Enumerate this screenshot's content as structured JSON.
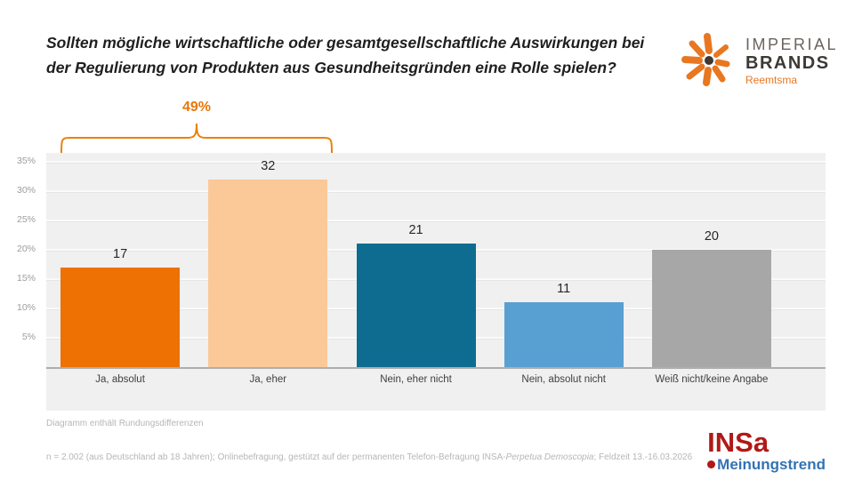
{
  "title": "Sollten mögliche wirtschaftliche oder gesamtgesellschaftliche Auswirkungen bei der Regulierung von Produkten aus Gesundheitsgründen eine Rolle spielen?",
  "logo_imperial": {
    "line1": "IMPERIAL",
    "line2": "BRANDS",
    "line3": "Reemtsma",
    "accent_color": "#e87722"
  },
  "bracket": {
    "label": "49%",
    "color": "#e8820c",
    "spans_categories": [
      "Ja, absolut",
      "Ja, eher"
    ]
  },
  "chart_data": {
    "type": "bar",
    "title": "",
    "categories": [
      "Ja, absolut",
      "Ja, eher",
      "Nein, eher nicht",
      "Nein, absolut nicht",
      "Weiß nicht/keine Angabe"
    ],
    "values": [
      17,
      32,
      21,
      11,
      20
    ],
    "bar_colors": [
      "#ed7103",
      "#fbc998",
      "#0e6c90",
      "#58a0d2",
      "#a7a7a7"
    ],
    "ytick_values": [
      5,
      10,
      15,
      20,
      25,
      30,
      35
    ],
    "ytick_labels": [
      "5%",
      "10%",
      "15%",
      "20%",
      "25%",
      "30%",
      "35%"
    ],
    "ylim": [
      0,
      36.7
    ],
    "grid": true,
    "legend": false,
    "annotation": {
      "text": "49%",
      "note": "sum of first two bars"
    }
  },
  "footnotes": {
    "note1": "Diagramm enthält Rundungsdifferenzen",
    "note2_pre": "n = 2.002 (aus Deutschland ab 18 Jahren); Onlinebefragung, gestützt auf der permanenten Telefon-Befragung INSA-",
    "note2_italic": "Perpetua Demoscopia",
    "note2_post": "; Feldzeit 13.-16.03.2026"
  },
  "logo_insa": {
    "name": "INSa",
    "sub": "Meinungstrend",
    "name_color": "#b01917",
    "sub_color": "#3273b4"
  }
}
